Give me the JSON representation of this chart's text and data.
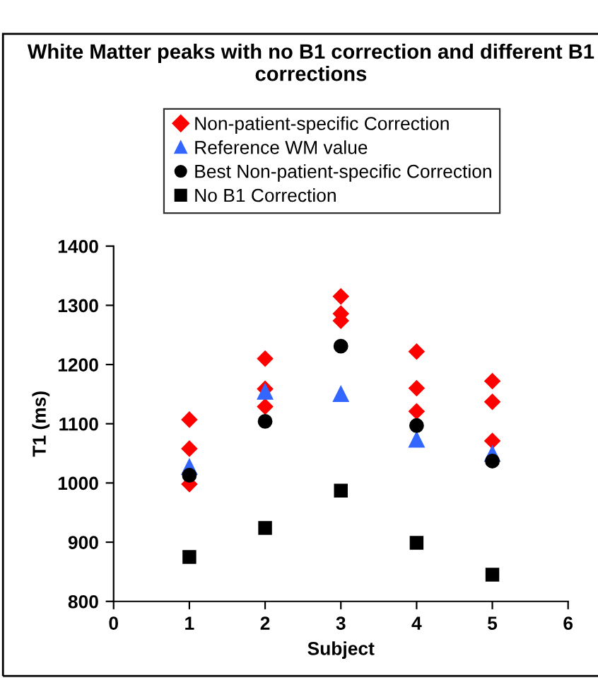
{
  "chart_data": {
    "type": "scatter",
    "title": "White Matter peaks with no B1 correction and different B1 corrections",
    "xlabel": "Subject",
    "ylabel": "T1 (ms)",
    "xlim": [
      0,
      6
    ],
    "xticks": [
      0,
      1,
      2,
      3,
      4,
      5,
      6
    ],
    "ylim": [
      800,
      1400
    ],
    "yticks": [
      800,
      900,
      1000,
      1100,
      1200,
      1300,
      1400
    ],
    "grid": false,
    "legend": "top",
    "series": [
      {
        "name": "Non-patient-specific Correction",
        "color": "#ff0000",
        "marker": "diamond",
        "x": [
          1,
          1,
          1,
          2,
          2,
          2,
          3,
          3,
          3,
          4,
          4,
          4,
          5,
          5,
          5
        ],
        "values": [
          1107,
          1058,
          998,
          1210,
          1159,
          1129,
          1315,
          1286,
          1274,
          1222,
          1160,
          1121,
          1172,
          1137,
          1071
        ]
      },
      {
        "name": "Reference WM value",
        "color": "#3366ff",
        "marker": "triangle",
        "x": [
          1,
          2,
          3,
          4,
          5
        ],
        "values": [
          1027,
          1154,
          1150,
          1073,
          1049
        ]
      },
      {
        "name": "Best Non-patient-specific Correction",
        "color": "#000000",
        "marker": "circle",
        "x": [
          1,
          2,
          3,
          4,
          5
        ],
        "values": [
          1013,
          1104,
          1231,
          1097,
          1037
        ]
      },
      {
        "name": "No B1 Correction",
        "color": "#000000",
        "marker": "square",
        "x": [
          1,
          2,
          3,
          4,
          5
        ],
        "values": [
          875,
          924,
          987,
          899,
          845
        ]
      }
    ]
  }
}
